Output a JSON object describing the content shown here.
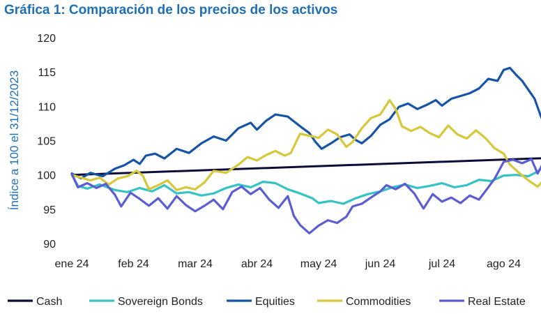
{
  "chart_data": {
    "type": "line",
    "title": "Gráfica 1: Comparación de los precios de los activos",
    "ylabel": "Índice a 100 el 31/12/2023",
    "xlabel": "",
    "ylim": [
      90,
      120
    ],
    "yticks": [
      90,
      95,
      100,
      105,
      110,
      115,
      120
    ],
    "xlim": [
      0,
      8.15
    ],
    "categories": [
      "ene 24",
      "feb 24",
      "mar 24",
      "abr 24",
      "may 24",
      "jun 24",
      "jul 24",
      "ago 24"
    ],
    "grid": false,
    "legend_position": "bottom",
    "series": [
      {
        "name": "Cash",
        "color": "#0c0c3a",
        "points": [
          [
            0.0,
            100.0
          ],
          [
            8.15,
            102.6
          ]
        ]
      },
      {
        "name": "Sovereign Bonds",
        "color": "#36c3c6",
        "points": [
          [
            0.0,
            100.1
          ],
          [
            0.1,
            98.4
          ],
          [
            0.25,
            98.0
          ],
          [
            0.45,
            98.6
          ],
          [
            0.7,
            97.8
          ],
          [
            0.9,
            97.5
          ],
          [
            1.1,
            98.1
          ],
          [
            1.3,
            97.6
          ],
          [
            1.5,
            98.5
          ],
          [
            1.7,
            97.3
          ],
          [
            1.9,
            97.5
          ],
          [
            2.1,
            97.0
          ],
          [
            2.3,
            97.3
          ],
          [
            2.5,
            98.1
          ],
          [
            2.7,
            98.6
          ],
          [
            2.9,
            98.2
          ],
          [
            3.1,
            99.0
          ],
          [
            3.3,
            98.8
          ],
          [
            3.5,
            97.9
          ],
          [
            3.7,
            97.3
          ],
          [
            3.9,
            96.6
          ],
          [
            4.0,
            95.9
          ],
          [
            4.2,
            96.2
          ],
          [
            4.4,
            95.8
          ],
          [
            4.6,
            96.6
          ],
          [
            4.8,
            97.2
          ],
          [
            5.0,
            97.6
          ],
          [
            5.2,
            98.2
          ],
          [
            5.4,
            98.6
          ],
          [
            5.6,
            98.1
          ],
          [
            5.8,
            98.4
          ],
          [
            6.0,
            98.8
          ],
          [
            6.2,
            98.2
          ],
          [
            6.4,
            98.5
          ],
          [
            6.6,
            99.3
          ],
          [
            6.8,
            99.1
          ],
          [
            7.0,
            99.9
          ],
          [
            7.2,
            100.0
          ],
          [
            7.4,
            99.8
          ],
          [
            7.55,
            100.5
          ],
          [
            7.7,
            101.6
          ],
          [
            7.85,
            102.6
          ],
          [
            8.0,
            103.5
          ],
          [
            8.15,
            103.6
          ]
        ]
      },
      {
        "name": "Equities",
        "color": "#1654a7",
        "points": [
          [
            0.0,
            100.2
          ],
          [
            0.15,
            99.5
          ],
          [
            0.3,
            100.3
          ],
          [
            0.5,
            99.8
          ],
          [
            0.7,
            100.9
          ],
          [
            0.85,
            101.4
          ],
          [
            1.0,
            102.2
          ],
          [
            1.1,
            101.6
          ],
          [
            1.2,
            102.8
          ],
          [
            1.35,
            103.1
          ],
          [
            1.5,
            102.4
          ],
          [
            1.7,
            103.8
          ],
          [
            1.9,
            103.2
          ],
          [
            2.1,
            104.6
          ],
          [
            2.3,
            105.6
          ],
          [
            2.5,
            105.0
          ],
          [
            2.7,
            106.8
          ],
          [
            2.9,
            107.6
          ],
          [
            3.0,
            106.6
          ],
          [
            3.15,
            107.9
          ],
          [
            3.3,
            108.8
          ],
          [
            3.5,
            108.5
          ],
          [
            3.7,
            107.1
          ],
          [
            3.85,
            106.1
          ],
          [
            3.95,
            104.8
          ],
          [
            4.05,
            103.8
          ],
          [
            4.2,
            104.6
          ],
          [
            4.35,
            105.5
          ],
          [
            4.5,
            105.9
          ],
          [
            4.6,
            105.1
          ],
          [
            4.7,
            104.6
          ],
          [
            4.85,
            105.7
          ],
          [
            5.0,
            107.3
          ],
          [
            5.15,
            108.1
          ],
          [
            5.3,
            109.9
          ],
          [
            5.45,
            110.4
          ],
          [
            5.6,
            109.6
          ],
          [
            5.75,
            110.2
          ],
          [
            5.9,
            110.9
          ],
          [
            6.0,
            110.1
          ],
          [
            6.15,
            111.1
          ],
          [
            6.3,
            111.5
          ],
          [
            6.45,
            111.9
          ],
          [
            6.6,
            112.6
          ],
          [
            6.75,
            114.0
          ],
          [
            6.9,
            113.7
          ],
          [
            7.0,
            115.3
          ],
          [
            7.1,
            115.6
          ],
          [
            7.2,
            114.6
          ],
          [
            7.3,
            113.7
          ],
          [
            7.4,
            112.4
          ],
          [
            7.5,
            111.1
          ],
          [
            7.6,
            108.6
          ],
          [
            7.7,
            106.6
          ],
          [
            7.8,
            108.4
          ],
          [
            7.9,
            112.1
          ],
          [
            8.0,
            114.6
          ],
          [
            8.05,
            115.4
          ],
          [
            8.1,
            116.4
          ],
          [
            8.15,
            116.3
          ]
        ]
      },
      {
        "name": "Commodities",
        "color": "#d6c838",
        "points": [
          [
            0.0,
            100.0
          ],
          [
            0.15,
            99.6
          ],
          [
            0.3,
            99.2
          ],
          [
            0.45,
            99.6
          ],
          [
            0.6,
            98.6
          ],
          [
            0.75,
            99.5
          ],
          [
            0.9,
            99.8
          ],
          [
            1.05,
            100.6
          ],
          [
            1.15,
            99.9
          ],
          [
            1.25,
            97.9
          ],
          [
            1.4,
            98.5
          ],
          [
            1.55,
            99.2
          ],
          [
            1.7,
            97.8
          ],
          [
            1.85,
            98.2
          ],
          [
            2.0,
            97.9
          ],
          [
            2.15,
            98.9
          ],
          [
            2.3,
            100.6
          ],
          [
            2.5,
            100.3
          ],
          [
            2.7,
            101.5
          ],
          [
            2.85,
            102.6
          ],
          [
            3.0,
            102.1
          ],
          [
            3.15,
            102.9
          ],
          [
            3.3,
            103.5
          ],
          [
            3.45,
            102.8
          ],
          [
            3.55,
            103.2
          ],
          [
            3.7,
            106.0
          ],
          [
            3.85,
            105.7
          ],
          [
            4.0,
            105.4
          ],
          [
            4.15,
            106.6
          ],
          [
            4.3,
            105.9
          ],
          [
            4.45,
            104.1
          ],
          [
            4.55,
            104.8
          ],
          [
            4.7,
            106.8
          ],
          [
            4.85,
            108.3
          ],
          [
            5.0,
            108.8
          ],
          [
            5.15,
            110.9
          ],
          [
            5.25,
            109.6
          ],
          [
            5.35,
            107.1
          ],
          [
            5.5,
            106.4
          ],
          [
            5.65,
            107.0
          ],
          [
            5.8,
            106.1
          ],
          [
            5.95,
            105.5
          ],
          [
            6.1,
            107.2
          ],
          [
            6.25,
            105.9
          ],
          [
            6.4,
            105.3
          ],
          [
            6.55,
            106.5
          ],
          [
            6.7,
            105.4
          ],
          [
            6.85,
            103.9
          ],
          [
            7.0,
            103.1
          ],
          [
            7.1,
            101.5
          ],
          [
            7.25,
            100.3
          ],
          [
            7.4,
            99.2
          ],
          [
            7.55,
            98.3
          ],
          [
            7.7,
            99.7
          ],
          [
            7.85,
            100.8
          ],
          [
            8.0,
            100.3
          ],
          [
            8.1,
            101.3
          ],
          [
            8.15,
            101.6
          ]
        ]
      },
      {
        "name": "Real Estate",
        "color": "#5a5ed2",
        "points": [
          [
            0.0,
            100.1
          ],
          [
            0.1,
            98.2
          ],
          [
            0.25,
            98.8
          ],
          [
            0.4,
            98.1
          ],
          [
            0.55,
            98.7
          ],
          [
            0.7,
            97.1
          ],
          [
            0.8,
            95.4
          ],
          [
            0.95,
            97.4
          ],
          [
            1.1,
            96.5
          ],
          [
            1.25,
            95.5
          ],
          [
            1.4,
            96.6
          ],
          [
            1.55,
            95.1
          ],
          [
            1.7,
            96.9
          ],
          [
            1.85,
            95.6
          ],
          [
            2.0,
            94.7
          ],
          [
            2.15,
            95.5
          ],
          [
            2.3,
            96.4
          ],
          [
            2.45,
            95.0
          ],
          [
            2.6,
            97.5
          ],
          [
            2.75,
            98.3
          ],
          [
            2.9,
            97.2
          ],
          [
            3.05,
            98.1
          ],
          [
            3.2,
            96.4
          ],
          [
            3.35,
            95.2
          ],
          [
            3.5,
            96.9
          ],
          [
            3.6,
            94.0
          ],
          [
            3.7,
            92.7
          ],
          [
            3.85,
            91.5
          ],
          [
            4.0,
            92.6
          ],
          [
            4.15,
            93.4
          ],
          [
            4.3,
            93.0
          ],
          [
            4.45,
            93.9
          ],
          [
            4.55,
            95.4
          ],
          [
            4.7,
            95.8
          ],
          [
            4.85,
            96.7
          ],
          [
            5.0,
            97.6
          ],
          [
            5.1,
            98.5
          ],
          [
            5.25,
            97.9
          ],
          [
            5.4,
            98.7
          ],
          [
            5.55,
            97.3
          ],
          [
            5.7,
            95.1
          ],
          [
            5.85,
            97.2
          ],
          [
            6.0,
            96.1
          ],
          [
            6.15,
            96.7
          ],
          [
            6.3,
            95.9
          ],
          [
            6.45,
            97.0
          ],
          [
            6.6,
            96.4
          ],
          [
            6.75,
            98.2
          ],
          [
            6.85,
            99.4
          ],
          [
            7.0,
            101.9
          ],
          [
            7.15,
            102.2
          ],
          [
            7.3,
            101.7
          ],
          [
            7.45,
            102.3
          ],
          [
            7.55,
            100.2
          ],
          [
            7.65,
            101.9
          ],
          [
            7.75,
            102.3
          ],
          [
            7.85,
            104.2
          ],
          [
            7.95,
            105.9
          ],
          [
            8.05,
            107.2
          ],
          [
            8.1,
            108.2
          ],
          [
            8.15,
            108.1
          ]
        ]
      }
    ]
  }
}
